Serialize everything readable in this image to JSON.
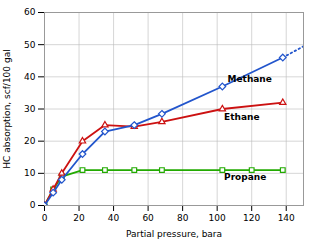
{
  "chart_data": {
    "type": "line",
    "xlabel": "Partial pressure, bara",
    "ylabel": "HC absorption, scf/100 gal",
    "xlim": [
      0,
      150
    ],
    "ylim": [
      0,
      60
    ],
    "xticks": [
      0,
      20,
      40,
      60,
      80,
      100,
      120,
      140
    ],
    "yticks": [
      0,
      10,
      20,
      30,
      40,
      50,
      60
    ],
    "grid": true,
    "series": [
      {
        "name": "Methane",
        "color": "#2255cc",
        "marker": "diamond",
        "line_style": "solid",
        "x": [
          0,
          5,
          10,
          22,
          35,
          52,
          68,
          103,
          138
        ],
        "values": [
          0,
          4,
          8,
          16,
          23,
          25,
          28.5,
          37,
          46
        ],
        "extension": {
          "x": [
            138,
            150
          ],
          "values": [
            46,
            49.5
          ],
          "line_style": "dotted"
        }
      },
      {
        "name": "Ethane",
        "color": "#cc1111",
        "marker": "triangle",
        "line_style": "solid",
        "x": [
          0,
          5,
          10,
          22,
          35,
          52,
          68,
          103,
          138
        ],
        "values": [
          0,
          5,
          10,
          20,
          25,
          24.5,
          26,
          30,
          32
        ]
      },
      {
        "name": "Propane",
        "color": "#22aa00",
        "marker": "square",
        "line_style": "solid",
        "x": [
          0,
          5,
          10,
          22,
          35,
          52,
          68,
          103,
          120,
          138
        ],
        "values": [
          0,
          5,
          9,
          11,
          11,
          11,
          11,
          11,
          11,
          11
        ]
      }
    ],
    "annotations": [
      {
        "text": "Methane",
        "x": 106,
        "y": 38.5
      },
      {
        "text": "Ethane",
        "x": 104,
        "y": 26.5
      },
      {
        "text": "Propane",
        "x": 104,
        "y": 8.0
      }
    ]
  }
}
